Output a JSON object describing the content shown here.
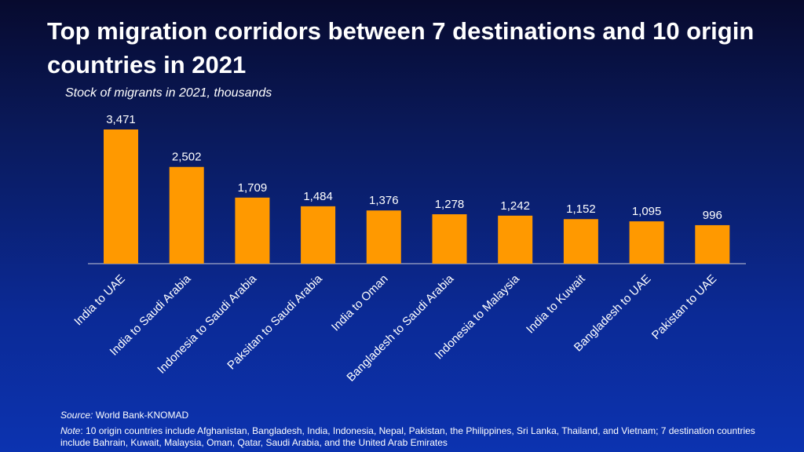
{
  "chart_data": {
    "type": "bar",
    "title": "Top migration corridors between 7 destinations and 10 origin countries in 2021",
    "subtitle": "Stock of migrants in 2021, thousands",
    "categories": [
      "India to UAE",
      "India to Saudi Arabia",
      "Indonesia to Saudi Arabia",
      "Paksitan to Saudi Arabia",
      "India to Oman",
      "Bangladesh to Saudi Arabia",
      "Indonesia to Malaysia",
      "India to Kuwait",
      "Bangladesh to UAE",
      "Pakistan to UAE"
    ],
    "values": [
      3471,
      2502,
      1709,
      1484,
      1376,
      1278,
      1242,
      1152,
      1095,
      996
    ],
    "value_labels": [
      "3,471",
      "2,502",
      "1,709",
      "1,484",
      "1,376",
      "1,278",
      "1,242",
      "1,152",
      "1,095",
      "996"
    ],
    "xlabel": "",
    "ylabel": "",
    "ylim": [
      0,
      3471
    ],
    "grid": false,
    "bar_color": "#ff9900"
  },
  "footer": {
    "source_label": "Source:",
    "source_text": "World Bank-KNOMAD",
    "note_label": "Note",
    "note_text": ": 10 origin countries include Afghanistan, Bangladesh, India, Indonesia, Nepal, Pakistan, the Philippines, Sri Lanka, Thailand, and Vietnam; 7 destination countries include Bahrain, Kuwait, Malaysia, Oman, Qatar, Saudi Arabia, and the United Arab Emirates"
  }
}
